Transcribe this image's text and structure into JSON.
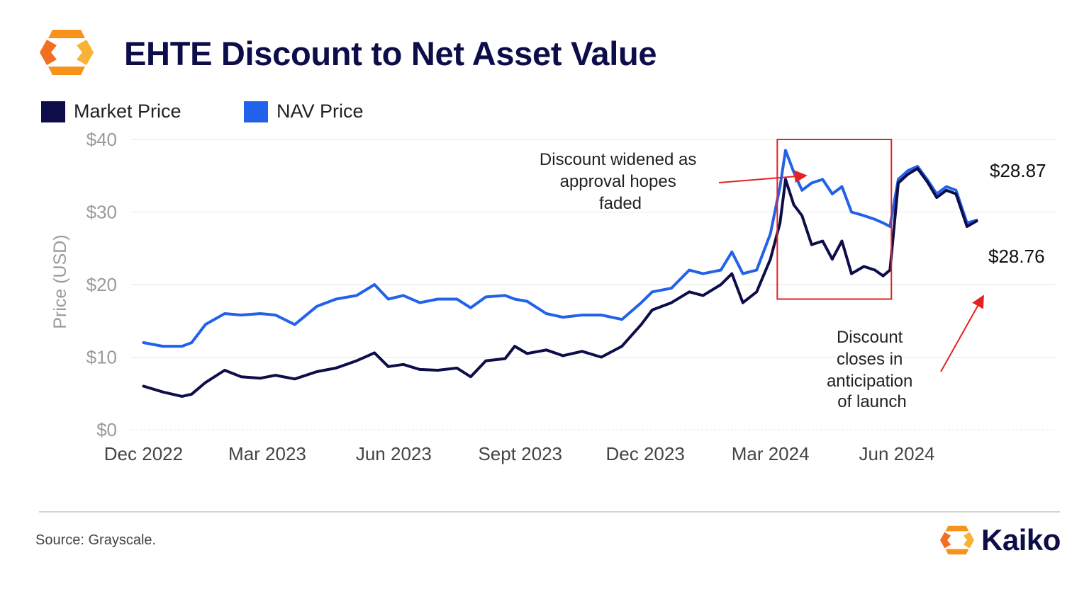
{
  "header": {
    "title": "EHTE Discount to Net Asset Value"
  },
  "colors": {
    "market": "#0d0d4a",
    "nav": "#2262ea",
    "accent_orange": "#f7931a",
    "annotation_red": "#e52222"
  },
  "icons": {
    "header_logo": "kaiko-logo-icon",
    "brand_logo": "kaiko-logo-icon"
  },
  "footer": {
    "source": "Source: Grayscale.",
    "brand": "Kaiko"
  },
  "chart_data": {
    "type": "line",
    "title": "EHTE Discount to Net Asset Value",
    "xlabel": "",
    "ylabel": "Price (USD)",
    "ylim": [
      0,
      40
    ],
    "y_ticks": [
      {
        "value": 0,
        "label": "$0"
      },
      {
        "value": 10,
        "label": "$10"
      },
      {
        "value": 20,
        "label": "$20"
      },
      {
        "value": 30,
        "label": "$30"
      },
      {
        "value": 40,
        "label": "$40"
      }
    ],
    "x_ticks": [
      {
        "date": "2022-12-01",
        "label": "Dec 2022"
      },
      {
        "date": "2023-03-01",
        "label": "Mar 2023"
      },
      {
        "date": "2023-06-01",
        "label": "Jun 2023"
      },
      {
        "date": "2023-09-01",
        "label": "Sept 2023"
      },
      {
        "date": "2023-12-01",
        "label": "Dec 2023"
      },
      {
        "date": "2024-03-01",
        "label": "Mar 2024"
      },
      {
        "date": "2024-06-01",
        "label": "Jun 2024"
      }
    ],
    "grid": true,
    "legend_position": "top-left",
    "series": [
      {
        "name": "Market Price",
        "color": "#0d0d4a",
        "points": [
          [
            "2022-12-01",
            6.0
          ],
          [
            "2022-12-15",
            5.2
          ],
          [
            "2022-12-29",
            4.6
          ],
          [
            "2023-01-05",
            4.9
          ],
          [
            "2023-01-15",
            6.5
          ],
          [
            "2023-01-29",
            8.2
          ],
          [
            "2023-02-10",
            7.3
          ],
          [
            "2023-02-24",
            7.1
          ],
          [
            "2023-03-07",
            7.5
          ],
          [
            "2023-03-21",
            7.0
          ],
          [
            "2023-04-06",
            8.0
          ],
          [
            "2023-04-20",
            8.5
          ],
          [
            "2023-05-05",
            9.5
          ],
          [
            "2023-05-18",
            10.6
          ],
          [
            "2023-05-28",
            8.7
          ],
          [
            "2023-06-08",
            9.0
          ],
          [
            "2023-06-20",
            8.3
          ],
          [
            "2023-07-03",
            8.2
          ],
          [
            "2023-07-17",
            8.5
          ],
          [
            "2023-07-27",
            7.3
          ],
          [
            "2023-08-07",
            9.5
          ],
          [
            "2023-08-21",
            9.8
          ],
          [
            "2023-08-28",
            11.5
          ],
          [
            "2023-09-06",
            10.5
          ],
          [
            "2023-09-20",
            11.0
          ],
          [
            "2023-10-02",
            10.2
          ],
          [
            "2023-10-16",
            10.8
          ],
          [
            "2023-10-30",
            10.0
          ],
          [
            "2023-11-14",
            11.5
          ],
          [
            "2023-11-28",
            14.5
          ],
          [
            "2023-12-06",
            16.5
          ],
          [
            "2023-12-20",
            17.5
          ],
          [
            "2024-01-02",
            19.0
          ],
          [
            "2024-01-12",
            18.5
          ],
          [
            "2024-01-25",
            20.0
          ],
          [
            "2024-02-02",
            21.5
          ],
          [
            "2024-02-10",
            17.5
          ],
          [
            "2024-02-20",
            19.0
          ],
          [
            "2024-03-01",
            23.5
          ],
          [
            "2024-03-08",
            28.5
          ],
          [
            "2024-03-12",
            34.5
          ],
          [
            "2024-03-18",
            31.0
          ],
          [
            "2024-03-24",
            29.5
          ],
          [
            "2024-03-31",
            25.5
          ],
          [
            "2024-04-08",
            26.0
          ],
          [
            "2024-04-15",
            23.5
          ],
          [
            "2024-04-22",
            26.0
          ],
          [
            "2024-04-29",
            21.5
          ],
          [
            "2024-05-08",
            22.5
          ],
          [
            "2024-05-16",
            22.0
          ],
          [
            "2024-05-22",
            21.2
          ],
          [
            "2024-05-27",
            22.0
          ],
          [
            "2024-06-02",
            34.0
          ],
          [
            "2024-06-09",
            35.2
          ],
          [
            "2024-06-16",
            36.0
          ],
          [
            "2024-06-23",
            34.2
          ],
          [
            "2024-06-30",
            32.0
          ],
          [
            "2024-07-07",
            33.0
          ],
          [
            "2024-07-14",
            32.5
          ],
          [
            "2024-07-22",
            28.0
          ],
          [
            "2024-07-29",
            28.76
          ]
        ]
      },
      {
        "name": "NAV Price",
        "color": "#2262ea",
        "points": [
          [
            "2022-12-01",
            12.0
          ],
          [
            "2022-12-15",
            11.5
          ],
          [
            "2022-12-29",
            11.5
          ],
          [
            "2023-01-05",
            12.0
          ],
          [
            "2023-01-15",
            14.5
          ],
          [
            "2023-01-29",
            16.0
          ],
          [
            "2023-02-10",
            15.8
          ],
          [
            "2023-02-24",
            16.0
          ],
          [
            "2023-03-07",
            15.8
          ],
          [
            "2023-03-21",
            14.5
          ],
          [
            "2023-04-06",
            17.0
          ],
          [
            "2023-04-20",
            18.0
          ],
          [
            "2023-05-05",
            18.5
          ],
          [
            "2023-05-18",
            20.0
          ],
          [
            "2023-05-28",
            18.0
          ],
          [
            "2023-06-08",
            18.5
          ],
          [
            "2023-06-20",
            17.5
          ],
          [
            "2023-07-03",
            18.0
          ],
          [
            "2023-07-17",
            18.0
          ],
          [
            "2023-07-27",
            16.8
          ],
          [
            "2023-08-07",
            18.3
          ],
          [
            "2023-08-21",
            18.5
          ],
          [
            "2023-08-28",
            18.0
          ],
          [
            "2023-09-06",
            17.7
          ],
          [
            "2023-09-20",
            16.0
          ],
          [
            "2023-10-02",
            15.5
          ],
          [
            "2023-10-16",
            15.8
          ],
          [
            "2023-10-30",
            15.8
          ],
          [
            "2023-11-14",
            15.2
          ],
          [
            "2023-11-28",
            17.5
          ],
          [
            "2023-12-06",
            19.0
          ],
          [
            "2023-12-20",
            19.5
          ],
          [
            "2024-01-02",
            22.0
          ],
          [
            "2024-01-12",
            21.5
          ],
          [
            "2024-01-25",
            22.0
          ],
          [
            "2024-02-02",
            24.5
          ],
          [
            "2024-02-10",
            21.5
          ],
          [
            "2024-02-20",
            22.0
          ],
          [
            "2024-03-01",
            27.0
          ],
          [
            "2024-03-08",
            33.5
          ],
          [
            "2024-03-12",
            38.5
          ],
          [
            "2024-03-18",
            35.5
          ],
          [
            "2024-03-24",
            33.0
          ],
          [
            "2024-03-31",
            34.0
          ],
          [
            "2024-04-08",
            34.5
          ],
          [
            "2024-04-15",
            32.5
          ],
          [
            "2024-04-22",
            33.5
          ],
          [
            "2024-04-29",
            30.0
          ],
          [
            "2024-05-08",
            29.5
          ],
          [
            "2024-05-16",
            29.0
          ],
          [
            "2024-05-22",
            28.5
          ],
          [
            "2024-05-27",
            28.0
          ],
          [
            "2024-06-02",
            34.5
          ],
          [
            "2024-06-09",
            35.7
          ],
          [
            "2024-06-16",
            36.3
          ],
          [
            "2024-06-23",
            34.5
          ],
          [
            "2024-06-30",
            32.5
          ],
          [
            "2024-07-07",
            33.5
          ],
          [
            "2024-07-14",
            33.0
          ],
          [
            "2024-07-22",
            28.5
          ],
          [
            "2024-07-29",
            28.87
          ]
        ]
      }
    ],
    "annotations": [
      {
        "id": "discount-widened",
        "text": [
          "Discount widened as",
          "approval hopes",
          "faded"
        ]
      },
      {
        "id": "discount-closes",
        "text": [
          "Discount",
          "closes in",
          "anticipation",
          "of launch"
        ]
      },
      {
        "id": "nav-end-value",
        "text": "$28.87"
      },
      {
        "id": "market-end-value",
        "text": "$28.76"
      }
    ],
    "highlight_range": {
      "start": "2024-03-06",
      "end": "2024-05-28",
      "y_min": 18,
      "y_max": 40
    }
  }
}
